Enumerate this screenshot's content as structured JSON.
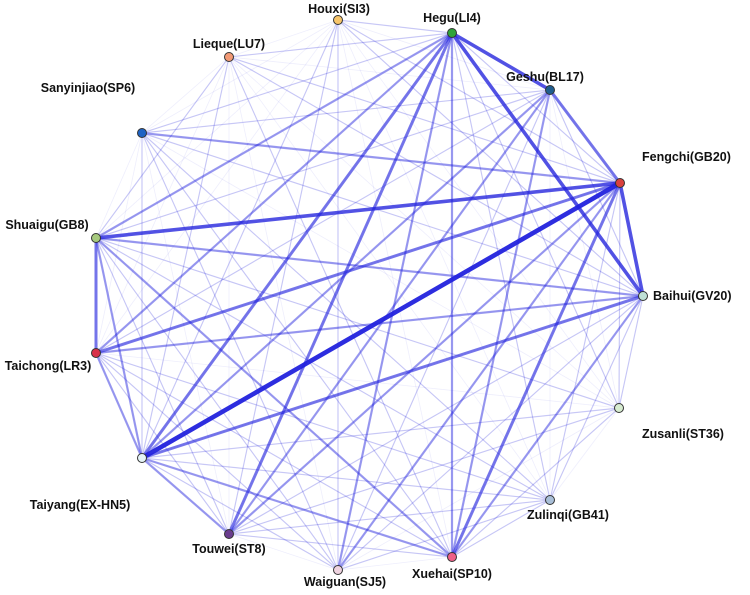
{
  "diagram": {
    "type": "network",
    "edge_color": "#2222dd",
    "node_outline_color": "#333333",
    "nodes": [
      {
        "id": "hegu",
        "label": "Hegu(LI4)",
        "color": "#2fa43a"
      },
      {
        "id": "geshu",
        "label": "Geshu(BL17)",
        "color": "#1f5d8f"
      },
      {
        "id": "fengchi",
        "label": "Fengchi(GB20)",
        "color": "#d9413e"
      },
      {
        "id": "baihui",
        "label": "Baihui(GV20)",
        "color": "#bfe0d6"
      },
      {
        "id": "zusanli",
        "label": "Zusanli(ST36)",
        "color": "#d7ecd0"
      },
      {
        "id": "zulinqi",
        "label": "Zulinqi(GB41)",
        "color": "#a9bfd8"
      },
      {
        "id": "xuehai",
        "label": "Xuehai(SP10)",
        "color": "#ee5f87"
      },
      {
        "id": "waiguan",
        "label": "Waiguan(SJ5)",
        "color": "#efd3e0"
      },
      {
        "id": "touwei",
        "label": "Touwei(ST8)",
        "color": "#6a3c8e"
      },
      {
        "id": "taiyang",
        "label": "Taiyang(EX-HN5)",
        "color": "#e6f4f7"
      },
      {
        "id": "taichong",
        "label": "Taichong(LR3)",
        "color": "#d8304a"
      },
      {
        "id": "shuaigu",
        "label": "Shuaigu(GB8)",
        "color": "#a6c97e"
      },
      {
        "id": "sanyinjiao",
        "label": "Sanyinjiao(SP6)",
        "color": "#1e63c4"
      },
      {
        "id": "lieque",
        "label": "Lieque(LU7)",
        "color": "#f29a76"
      },
      {
        "id": "houxi",
        "label": "Houxi(SI3)",
        "color": "#f7c56a"
      }
    ],
    "edges": [
      {
        "source": "taiyang",
        "target": "fengchi",
        "weight": 5
      },
      {
        "source": "hegu",
        "target": "geshu",
        "weight": 4
      },
      {
        "source": "hegu",
        "target": "baihui",
        "weight": 4
      },
      {
        "source": "fengchi",
        "target": "baihui",
        "weight": 4
      },
      {
        "source": "shuaigu",
        "target": "fengchi",
        "weight": 4
      },
      {
        "source": "geshu",
        "target": "fengchi",
        "weight": 3
      },
      {
        "source": "taichong",
        "target": "fengchi",
        "weight": 3
      },
      {
        "source": "hegu",
        "target": "touwei",
        "weight": 3
      },
      {
        "source": "hegu",
        "target": "taiyang",
        "weight": 3
      },
      {
        "source": "xuehai",
        "target": "fengchi",
        "weight": 3
      },
      {
        "source": "shuaigu",
        "target": "taichong",
        "weight": 3
      },
      {
        "source": "taiyang",
        "target": "baihui",
        "weight": 3
      },
      {
        "source": "hegu",
        "target": "shuaigu",
        "weight": 2
      },
      {
        "source": "hegu",
        "target": "taichong",
        "weight": 2
      },
      {
        "source": "hegu",
        "target": "xuehai",
        "weight": 2
      },
      {
        "source": "hegu",
        "target": "waiguan",
        "weight": 2
      },
      {
        "source": "taichong",
        "target": "taiyang",
        "weight": 2
      },
      {
        "source": "taichong",
        "target": "baihui",
        "weight": 2
      },
      {
        "source": "shuaigu",
        "target": "baihui",
        "weight": 2
      },
      {
        "source": "touwei",
        "target": "fengchi",
        "weight": 2
      },
      {
        "source": "touwei",
        "target": "geshu",
        "weight": 2
      },
      {
        "source": "taiyang",
        "target": "xuehai",
        "weight": 2
      },
      {
        "source": "taiyang",
        "target": "touwei",
        "weight": 2
      },
      {
        "source": "xuehai",
        "target": "geshu",
        "weight": 2
      },
      {
        "source": "xuehai",
        "target": "baihui",
        "weight": 2
      },
      {
        "source": "waiguan",
        "target": "fengchi",
        "weight": 2
      },
      {
        "source": "sanyinjiao",
        "target": "fengchi",
        "weight": 2
      },
      {
        "source": "shuaigu",
        "target": "taiyang",
        "weight": 2
      },
      {
        "source": "shuaigu",
        "target": "xuehai",
        "weight": 2
      },
      {
        "source": "taiyang",
        "target": "geshu",
        "weight": 2
      },
      {
        "source": "sanyinjiao",
        "target": "hegu",
        "weight": 1
      },
      {
        "source": "sanyinjiao",
        "target": "baihui",
        "weight": 1
      },
      {
        "source": "sanyinjiao",
        "target": "xuehai",
        "weight": 1
      },
      {
        "source": "sanyinjiao",
        "target": "taiyang",
        "weight": 1
      },
      {
        "source": "sanyinjiao",
        "target": "waiguan",
        "weight": 1
      },
      {
        "source": "sanyinjiao",
        "target": "zulinqi",
        "weight": 1
      },
      {
        "source": "sanyinjiao",
        "target": "geshu",
        "weight": 1
      },
      {
        "source": "lieque",
        "target": "hegu",
        "weight": 1
      },
      {
        "source": "lieque",
        "target": "fengchi",
        "weight": 1
      },
      {
        "source": "lieque",
        "target": "taiyang",
        "weight": 1
      },
      {
        "source": "lieque",
        "target": "shuaigu",
        "weight": 1
      },
      {
        "source": "lieque",
        "target": "xuehai",
        "weight": 1
      },
      {
        "source": "lieque",
        "target": "baihui",
        "weight": 1
      },
      {
        "source": "houxi",
        "target": "hegu",
        "weight": 1
      },
      {
        "source": "houxi",
        "target": "fengchi",
        "weight": 1
      },
      {
        "source": "houxi",
        "target": "taiyang",
        "weight": 1
      },
      {
        "source": "houxi",
        "target": "baihui",
        "weight": 1
      },
      {
        "source": "houxi",
        "target": "touwei",
        "weight": 1
      },
      {
        "source": "houxi",
        "target": "waiguan",
        "weight": 1
      },
      {
        "source": "zusanli",
        "target": "hegu",
        "weight": 1
      },
      {
        "source": "zusanli",
        "target": "fengchi",
        "weight": 1
      },
      {
        "source": "zusanli",
        "target": "taiyang",
        "weight": 1
      },
      {
        "source": "zusanli",
        "target": "xuehai",
        "weight": 1
      },
      {
        "source": "zusanli",
        "target": "shuaigu",
        "weight": 1
      },
      {
        "source": "zusanli",
        "target": "touwei",
        "weight": 1
      },
      {
        "source": "zusanli",
        "target": "baihui",
        "weight": 1
      },
      {
        "source": "zulinqi",
        "target": "fengchi",
        "weight": 1
      },
      {
        "source": "zulinqi",
        "target": "baihui",
        "weight": 1
      },
      {
        "source": "zulinqi",
        "target": "hegu",
        "weight": 1
      },
      {
        "source": "zulinqi",
        "target": "taiyang",
        "weight": 1
      },
      {
        "source": "zulinqi",
        "target": "taichong",
        "weight": 1
      },
      {
        "source": "zulinqi",
        "target": "touwei",
        "weight": 1
      },
      {
        "source": "zulinqi",
        "target": "shuaigu",
        "weight": 1
      },
      {
        "source": "zulinqi",
        "target": "waiguan",
        "weight": 1
      },
      {
        "source": "zulinqi",
        "target": "xuehai",
        "weight": 1
      },
      {
        "source": "waiguan",
        "target": "taiyang",
        "weight": 1
      },
      {
        "source": "waiguan",
        "target": "shuaigu",
        "weight": 1
      },
      {
        "source": "waiguan",
        "target": "taichong",
        "weight": 1
      },
      {
        "source": "waiguan",
        "target": "geshu",
        "weight": 1
      },
      {
        "source": "waiguan",
        "target": "baihui",
        "weight": 1
      },
      {
        "source": "touwei",
        "target": "baihui",
        "weight": 1
      },
      {
        "source": "touwei",
        "target": "shuaigu",
        "weight": 1
      },
      {
        "source": "touwei",
        "target": "taichong",
        "weight": 1
      },
      {
        "source": "touwei",
        "target": "xuehai",
        "weight": 1
      },
      {
        "source": "taichong",
        "target": "xuehai",
        "weight": 1
      },
      {
        "source": "taichong",
        "target": "geshu",
        "weight": 1
      },
      {
        "source": "shuaigu",
        "target": "geshu",
        "weight": 1
      },
      {
        "source": "geshu",
        "target": "baihui",
        "weight": 1
      },
      {
        "source": "hegu",
        "target": "fengchi",
        "weight": 1
      }
    ]
  }
}
